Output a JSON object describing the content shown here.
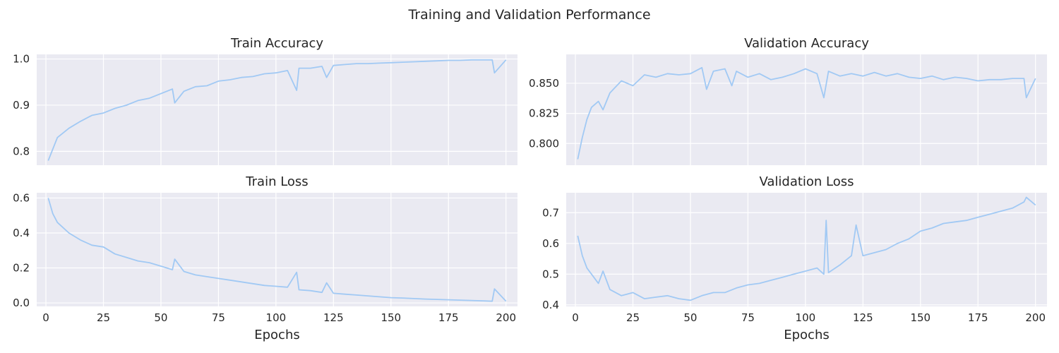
{
  "figure": {
    "suptitle": "Training and Validation Performance",
    "line_color": "#a1c9f4",
    "panel_bg": "#eaeaf2",
    "grid_color": "#ffffff"
  },
  "chart_data": [
    {
      "type": "line",
      "title": "Train Accuracy",
      "xlabel": "",
      "ylabel": "",
      "xlim": [
        -4,
        205
      ],
      "ylim": [
        0.77,
        1.01
      ],
      "xticks": [
        0,
        25,
        50,
        75,
        100,
        125,
        150,
        175,
        200
      ],
      "xtick_labels_visible": false,
      "yticks": [
        0.8,
        0.9,
        1.0
      ],
      "ytick_labels": [
        "0.8",
        "0.9",
        "1.0"
      ],
      "grid": true,
      "x": [
        1,
        5,
        10,
        15,
        20,
        25,
        30,
        35,
        40,
        45,
        50,
        55,
        56,
        60,
        65,
        70,
        75,
        80,
        85,
        90,
        95,
        100,
        105,
        109,
        110,
        115,
        120,
        122,
        125,
        130,
        135,
        140,
        145,
        150,
        155,
        160,
        165,
        170,
        175,
        180,
        185,
        190,
        194,
        195,
        200
      ],
      "series": [
        {
          "values": [
            0.78,
            0.83,
            0.85,
            0.865,
            0.878,
            0.883,
            0.893,
            0.9,
            0.91,
            0.915,
            0.925,
            0.935,
            0.905,
            0.93,
            0.94,
            0.942,
            0.952,
            0.955,
            0.96,
            0.962,
            0.968,
            0.97,
            0.975,
            0.932,
            0.98,
            0.98,
            0.984,
            0.96,
            0.986,
            0.988,
            0.99,
            0.99,
            0.991,
            0.992,
            0.993,
            0.994,
            0.995,
            0.996,
            0.997,
            0.997,
            0.998,
            0.998,
            0.998,
            0.97,
            0.998
          ]
        }
      ]
    },
    {
      "type": "line",
      "title": "Validation Accuracy",
      "xlabel": "",
      "ylabel": "",
      "xlim": [
        -4,
        205
      ],
      "ylim": [
        0.782,
        0.874
      ],
      "xticks": [
        0,
        25,
        50,
        75,
        100,
        125,
        150,
        175,
        200
      ],
      "xtick_labels_visible": false,
      "yticks": [
        0.8,
        0.825,
        0.85
      ],
      "ytick_labels": [
        "0.800",
        "0.825",
        "0.850"
      ],
      "grid": true,
      "x": [
        1,
        3,
        5,
        7,
        10,
        12,
        15,
        20,
        25,
        30,
        35,
        40,
        45,
        50,
        55,
        57,
        60,
        65,
        68,
        70,
        75,
        80,
        85,
        90,
        95,
        100,
        105,
        108,
        110,
        115,
        120,
        125,
        130,
        135,
        140,
        145,
        150,
        155,
        160,
        165,
        170,
        175,
        180,
        185,
        190,
        195,
        196,
        200
      ],
      "series": [
        {
          "values": [
            0.787,
            0.805,
            0.82,
            0.83,
            0.835,
            0.828,
            0.842,
            0.852,
            0.848,
            0.857,
            0.855,
            0.858,
            0.857,
            0.858,
            0.863,
            0.845,
            0.86,
            0.862,
            0.848,
            0.86,
            0.855,
            0.858,
            0.853,
            0.855,
            0.858,
            0.862,
            0.858,
            0.838,
            0.86,
            0.856,
            0.858,
            0.856,
            0.859,
            0.856,
            0.858,
            0.855,
            0.854,
            0.856,
            0.853,
            0.855,
            0.854,
            0.852,
            0.853,
            0.853,
            0.854,
            0.854,
            0.838,
            0.854
          ]
        }
      ]
    },
    {
      "type": "line",
      "title": "Train Loss",
      "xlabel": "Epochs",
      "ylabel": "",
      "xlim": [
        -4,
        205
      ],
      "ylim": [
        -0.02,
        0.63
      ],
      "xticks": [
        0,
        25,
        50,
        75,
        100,
        125,
        150,
        175,
        200
      ],
      "xtick_labels": [
        "0",
        "25",
        "50",
        "75",
        "100",
        "125",
        "150",
        "175",
        "200"
      ],
      "yticks": [
        0.0,
        0.2,
        0.4,
        0.6
      ],
      "ytick_labels": [
        "0.0",
        "0.2",
        "0.4",
        "0.6"
      ],
      "grid": true,
      "x": [
        1,
        3,
        5,
        10,
        15,
        20,
        25,
        30,
        35,
        40,
        45,
        50,
        55,
        56,
        60,
        65,
        70,
        75,
        80,
        85,
        90,
        95,
        100,
        105,
        109,
        110,
        115,
        120,
        122,
        125,
        130,
        135,
        140,
        145,
        150,
        155,
        160,
        165,
        170,
        175,
        180,
        185,
        190,
        194,
        195,
        200
      ],
      "series": [
        {
          "values": [
            0.6,
            0.51,
            0.46,
            0.4,
            0.36,
            0.33,
            0.32,
            0.28,
            0.26,
            0.24,
            0.23,
            0.21,
            0.19,
            0.25,
            0.18,
            0.16,
            0.15,
            0.14,
            0.13,
            0.12,
            0.11,
            0.1,
            0.095,
            0.09,
            0.175,
            0.075,
            0.07,
            0.06,
            0.115,
            0.055,
            0.05,
            0.045,
            0.04,
            0.035,
            0.03,
            0.028,
            0.025,
            0.022,
            0.02,
            0.018,
            0.016,
            0.014,
            0.012,
            0.01,
            0.08,
            0.01
          ]
        }
      ]
    },
    {
      "type": "line",
      "title": "Validation Loss",
      "xlabel": "Epochs",
      "ylabel": "",
      "xlim": [
        -4,
        205
      ],
      "ylim": [
        0.395,
        0.765
      ],
      "xticks": [
        0,
        25,
        50,
        75,
        100,
        125,
        150,
        175,
        200
      ],
      "xtick_labels": [
        "0",
        "25",
        "50",
        "75",
        "100",
        "125",
        "150",
        "175",
        "200"
      ],
      "yticks": [
        0.4,
        0.5,
        0.6,
        0.7
      ],
      "ytick_labels": [
        "0.4",
        "0.5",
        "0.6",
        "0.7"
      ],
      "grid": true,
      "x": [
        1,
        3,
        5,
        8,
        10,
        12,
        15,
        20,
        25,
        30,
        35,
        40,
        45,
        50,
        55,
        60,
        65,
        70,
        75,
        80,
        85,
        90,
        95,
        100,
        105,
        108,
        109,
        110,
        115,
        120,
        122,
        125,
        130,
        135,
        140,
        145,
        150,
        155,
        160,
        165,
        170,
        175,
        180,
        185,
        190,
        195,
        196,
        200
      ],
      "series": [
        {
          "values": [
            0.625,
            0.56,
            0.52,
            0.49,
            0.47,
            0.51,
            0.45,
            0.43,
            0.44,
            0.42,
            0.425,
            0.43,
            0.42,
            0.415,
            0.43,
            0.44,
            0.44,
            0.455,
            0.465,
            0.47,
            0.48,
            0.49,
            0.5,
            0.51,
            0.52,
            0.5,
            0.675,
            0.505,
            0.53,
            0.56,
            0.66,
            0.56,
            0.57,
            0.58,
            0.6,
            0.615,
            0.64,
            0.65,
            0.665,
            0.67,
            0.675,
            0.685,
            0.695,
            0.705,
            0.715,
            0.735,
            0.75,
            0.725
          ]
        }
      ]
    }
  ]
}
